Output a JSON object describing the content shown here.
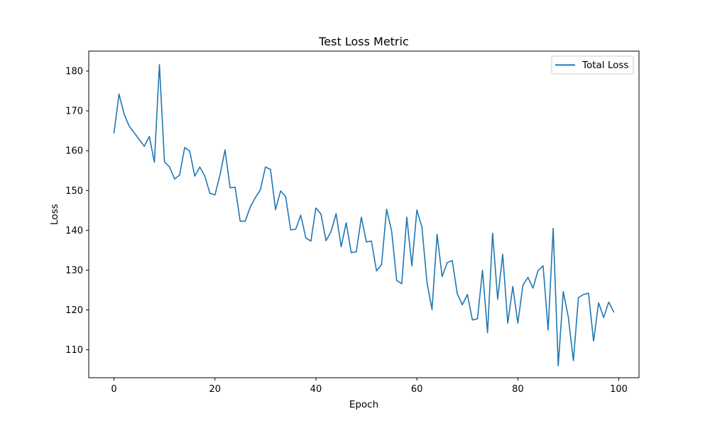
{
  "chart_data": {
    "type": "line",
    "title": "Test Loss Metric",
    "xlabel": "Epoch",
    "ylabel": "Loss",
    "xlim": [
      -5,
      104
    ],
    "ylim": [
      103,
      185
    ],
    "x_ticks": [
      0,
      20,
      40,
      60,
      80,
      100
    ],
    "y_ticks": [
      110,
      120,
      130,
      140,
      150,
      160,
      170,
      180
    ],
    "grid": false,
    "legend_position": "top-right",
    "series": [
      {
        "name": "Total Loss",
        "color": "#1f77b4",
        "x": [
          0,
          1,
          2,
          3,
          4,
          5,
          6,
          7,
          8,
          9,
          10,
          11,
          12,
          13,
          14,
          15,
          16,
          17,
          18,
          19,
          20,
          21,
          22,
          23,
          24,
          25,
          26,
          27,
          28,
          29,
          30,
          31,
          32,
          33,
          34,
          35,
          36,
          37,
          38,
          39,
          40,
          41,
          42,
          43,
          44,
          45,
          46,
          47,
          48,
          49,
          50,
          51,
          52,
          53,
          54,
          55,
          56,
          57,
          58,
          59,
          60,
          61,
          62,
          63,
          64,
          65,
          66,
          67,
          68,
          69,
          70,
          71,
          72,
          73,
          74,
          75,
          76,
          77,
          78,
          79,
          80,
          81,
          82,
          83,
          84,
          85,
          86,
          87,
          88,
          89,
          90,
          91,
          92,
          93,
          94,
          95,
          96,
          97,
          98,
          99
        ],
        "y": [
          164.5,
          174.2,
          169.2,
          166.2,
          164.5,
          162.8,
          161.1,
          163.6,
          157.1,
          181.6,
          157.2,
          155.9,
          152.9,
          153.9,
          160.8,
          159.9,
          153.6,
          155.9,
          153.6,
          149.3,
          148.9,
          153.9,
          160.2,
          150.7,
          150.8,
          142.3,
          142.3,
          145.9,
          148.2,
          150.2,
          155.9,
          155.3,
          145.2,
          149.9,
          148.5,
          140.1,
          140.3,
          143.8,
          138.1,
          137.3,
          145.6,
          144.1,
          137.4,
          139.7,
          144.2,
          135.9,
          141.9,
          134.4,
          134.6,
          143.3,
          137.1,
          137.3,
          129.8,
          131.4,
          145.3,
          139.8,
          127.4,
          126.6,
          143.3,
          131.1,
          145.1,
          140.8,
          126.9,
          120.1,
          139.0,
          128.4,
          131.9,
          132.4,
          124.1,
          121.3,
          123.9,
          117.5,
          117.8,
          130.0,
          114.3,
          139.3,
          122.7,
          134.0,
          116.7,
          125.9,
          116.7,
          126.2,
          128.2,
          125.5,
          129.9,
          131.1,
          115.0,
          140.5,
          106.0,
          124.6,
          118.2,
          107.3,
          123.1,
          123.9,
          124.2,
          112.2,
          121.8,
          118.1,
          122.0,
          119.5
        ]
      }
    ]
  }
}
